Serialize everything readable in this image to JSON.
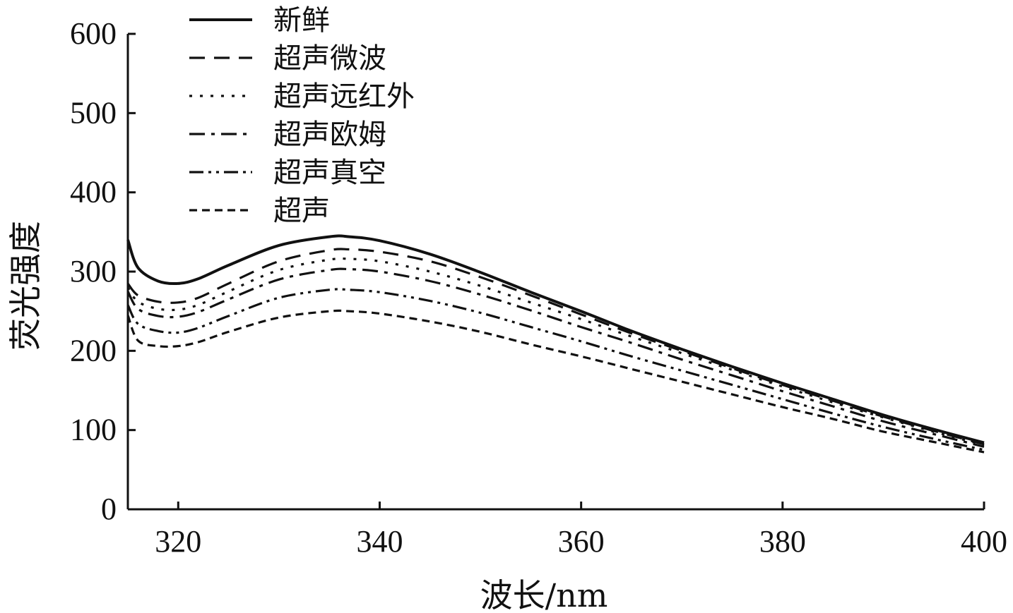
{
  "chart_data": {
    "type": "line",
    "xlabel": "波长/nm",
    "ylabel": "荧光强度",
    "xlim": [
      315,
      400
    ],
    "ylim": [
      0,
      600
    ],
    "xticks": [
      320,
      340,
      360,
      380,
      400
    ],
    "yticks": [
      0,
      100,
      200,
      300,
      400,
      500,
      600
    ],
    "grid": false,
    "legend_position": "top-left",
    "x": [
      315,
      316,
      318,
      320,
      322,
      325,
      330,
      335,
      337,
      340,
      345,
      350,
      355,
      360,
      365,
      370,
      375,
      380,
      385,
      390,
      395,
      400
    ],
    "series": [
      {
        "name": "新鲜",
        "dash": "solid",
        "values": [
          340,
          305,
          288,
          285,
          291,
          308,
          333,
          344,
          344,
          339,
          322,
          299,
          274,
          250,
          225,
          202,
          180,
          159,
          139,
          119,
          101,
          84
        ]
      },
      {
        "name": "超声微波",
        "dash": "dashed",
        "values": [
          285,
          270,
          262,
          261,
          267,
          285,
          313,
          327,
          328,
          325,
          313,
          293,
          270,
          246,
          222,
          200,
          178,
          157,
          137,
          117,
          99,
          82
        ]
      },
      {
        "name": "超声远红外",
        "dash": "dotted",
        "values": [
          280,
          262,
          253,
          252,
          258,
          275,
          302,
          315,
          316,
          313,
          300,
          282,
          261,
          240,
          218,
          197,
          176,
          155,
          135,
          116,
          98,
          81
        ]
      },
      {
        "name": "超声欧姆",
        "dash": "dashdot",
        "values": [
          275,
          253,
          244,
          243,
          249,
          265,
          290,
          302,
          303,
          300,
          288,
          271,
          251,
          230,
          210,
          189,
          169,
          149,
          130,
          111,
          95,
          79
        ]
      },
      {
        "name": "超声真空",
        "dash": "dashdotdot",
        "values": [
          258,
          234,
          225,
          223,
          229,
          244,
          267,
          277,
          277,
          274,
          263,
          248,
          230,
          212,
          193,
          175,
          157,
          139,
          121,
          104,
          89,
          75
        ]
      },
      {
        "name": "超声",
        "dash": "shortdash",
        "values": [
          245,
          213,
          206,
          206,
          211,
          224,
          242,
          250,
          250,
          247,
          237,
          224,
          208,
          193,
          177,
          161,
          145,
          129,
          114,
          98,
          85,
          72
        ]
      }
    ]
  }
}
